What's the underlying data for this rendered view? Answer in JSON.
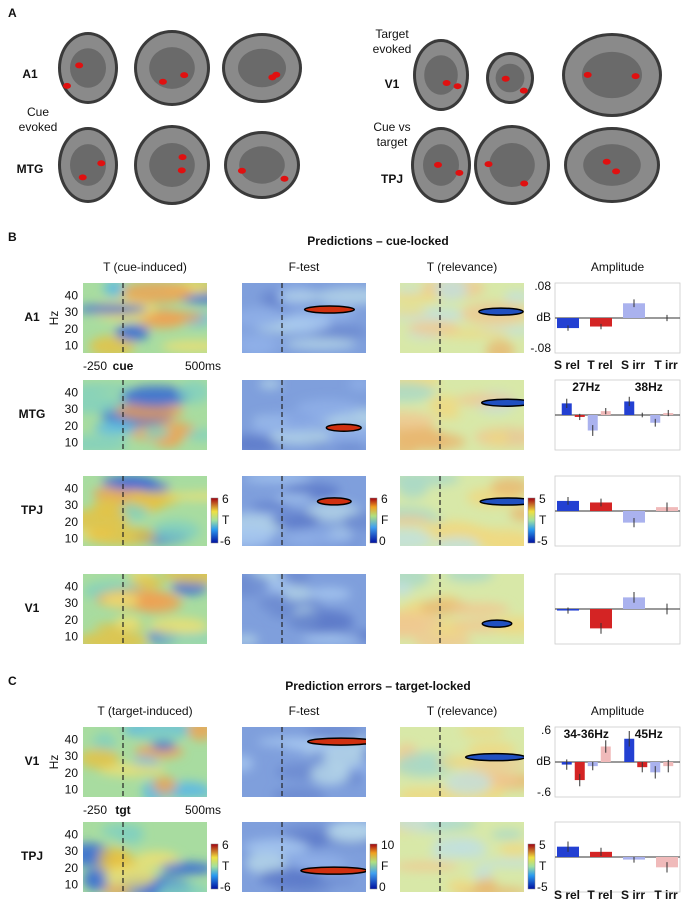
{
  "panel_a": {
    "label": "A",
    "rows": [
      "A1",
      "MTG",
      "V1",
      "TPJ"
    ],
    "captions": [
      [
        "Cue",
        "evoked"
      ],
      [
        "Target",
        "evoked"
      ],
      [
        "Cue vs",
        "target"
      ]
    ]
  },
  "panel_b": {
    "label": "B",
    "title": "Predictions – cue-locked",
    "columns": [
      "T (cue-induced)",
      "F-test",
      "T (relevance)",
      "Amplitude"
    ],
    "heatmap": {
      "y_label": "Hz",
      "ylim": [
        6,
        48
      ],
      "yticks": [
        40,
        30,
        20,
        10
      ],
      "xlim": [
        -250,
        525
      ],
      "xticks": [
        {
          "value": -250,
          "label": "-250"
        },
        {
          "value": 0,
          "label": "cue"
        },
        {
          "value": 500,
          "label": "500ms"
        }
      ]
    },
    "colorbars": [
      {
        "max": 6,
        "label": "T",
        "min": -6
      },
      {
        "max": 6,
        "label": "F",
        "min": 0
      },
      {
        "max": 5,
        "label": "T",
        "min": -5
      }
    ],
    "amplitude": {
      "ylim": [
        -0.08,
        0.08
      ],
      "yticks": [
        {
          "value": 0.08,
          "label": ".08"
        },
        {
          "value": 0,
          "label": "dB"
        },
        {
          "value": -0.08,
          "label": "-.08"
        }
      ],
      "series": [
        {
          "name": "S rel",
          "color": "#2340d2"
        },
        {
          "name": "T rel",
          "color": "#d42424"
        },
        {
          "name": "S irr",
          "color": "#aab2ee"
        },
        {
          "name": "T irr",
          "color": "#f0baba"
        }
      ]
    },
    "rows": [
      {
        "name": "A1",
        "groups": [
          {
            "values": [
              -0.026,
              -0.022,
              0.038,
              0
            ],
            "errors": [
              0.007,
              0.007,
              0.01,
              0.008
            ]
          }
        ]
      },
      {
        "name": "MTG",
        "groups": [
          {
            "label": "27Hz",
            "values": [
              0.03,
              -0.005,
              -0.04,
              0.01
            ],
            "errors": [
              0.012,
              0.008,
              0.014,
              0.008
            ]
          },
          {
            "label": "38Hz",
            "values": [
              0.035,
              0,
              -0.02,
              0.005
            ],
            "errors": [
              0.012,
              0.006,
              0.01,
              0.008
            ]
          }
        ]
      },
      {
        "name": "TPJ",
        "groups": [
          {
            "values": [
              0.026,
              0.022,
              -0.03,
              0.01
            ],
            "errors": [
              0.01,
              0.01,
              0.012,
              0.012
            ]
          }
        ]
      },
      {
        "name": "V1",
        "groups": [
          {
            "values": [
              -0.004,
              -0.05,
              0.03,
              0
            ],
            "errors": [
              0.008,
              0.014,
              0.014,
              0.014
            ]
          }
        ]
      }
    ]
  },
  "panel_c": {
    "label": "C",
    "title": "Prediction errors – target-locked",
    "columns": [
      "T (target-induced)",
      "F-test",
      "T (relevance)",
      "Amplitude"
    ],
    "heatmap": {
      "y_label": "Hz",
      "ylim": [
        6,
        48
      ],
      "yticks": [
        40,
        30,
        20,
        10
      ],
      "xlim": [
        -250,
        525
      ],
      "xticks": [
        {
          "value": -250,
          "label": "-250"
        },
        {
          "value": 0,
          "label": "tgt"
        },
        {
          "value": 500,
          "label": "500ms"
        }
      ]
    },
    "colorbars": [
      {
        "max": 6,
        "label": "T",
        "min": -6
      },
      {
        "max": 10,
        "label": "F",
        "min": 0
      },
      {
        "max": 5,
        "label": "T",
        "min": -5
      }
    ],
    "amplitude": {
      "ylim": [
        -0.6,
        0.6
      ],
      "yticks": [
        {
          "value": 0.6,
          "label": ".6"
        },
        {
          "value": 0,
          "label": "dB"
        },
        {
          "value": -0.6,
          "label": "-.6"
        }
      ],
      "series": [
        {
          "name": "S rel",
          "color": "#2340d2"
        },
        {
          "name": "T rel",
          "color": "#d42424"
        },
        {
          "name": "S irr",
          "color": "#aab2ee"
        },
        {
          "name": "T irr",
          "color": "#f0baba"
        }
      ]
    },
    "rows": [
      {
        "name": "V1",
        "groups": [
          {
            "label": "34-36Hz",
            "values": [
              -0.05,
              -0.35,
              -0.08,
              0.3
            ],
            "errors": [
              0.1,
              0.12,
              0.08,
              0.12
            ]
          },
          {
            "label": "45Hz",
            "values": [
              0.45,
              -0.1,
              -0.2,
              -0.08
            ],
            "errors": [
              0.15,
              0.1,
              0.12,
              0.12
            ]
          }
        ]
      },
      {
        "name": "TPJ",
        "groups": [
          {
            "values": [
              0.2,
              0.1,
              -0.05,
              -0.2
            ],
            "errors": [
              0.1,
              0.08,
              0.06,
              0.1
            ]
          }
        ]
      }
    ]
  }
}
